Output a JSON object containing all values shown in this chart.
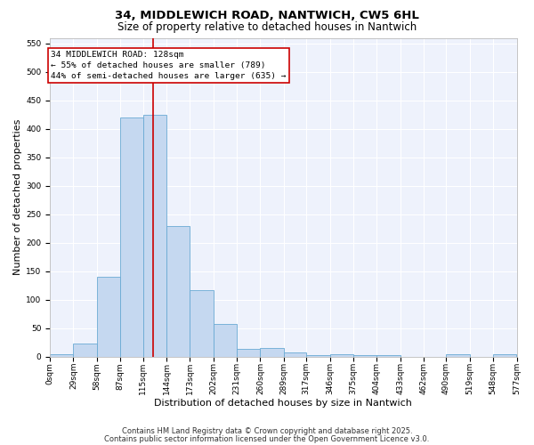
{
  "title": "34, MIDDLEWICH ROAD, NANTWICH, CW5 6HL",
  "subtitle": "Size of property relative to detached houses in Nantwich",
  "xlabel": "Distribution of detached houses by size in Nantwich",
  "ylabel": "Number of detached properties",
  "bin_edges": [
    0,
    29,
    58,
    87,
    115,
    144,
    173,
    202,
    231,
    260,
    289,
    317,
    346,
    375,
    404,
    433,
    462,
    490,
    519,
    548,
    577
  ],
  "bin_labels": [
    "0sqm",
    "29sqm",
    "58sqm",
    "87sqm",
    "115sqm",
    "144sqm",
    "173sqm",
    "202sqm",
    "231sqm",
    "260sqm",
    "289sqm",
    "317sqm",
    "346sqm",
    "375sqm",
    "404sqm",
    "433sqm",
    "462sqm",
    "490sqm",
    "519sqm",
    "548sqm",
    "577sqm"
  ],
  "counts": [
    4,
    23,
    140,
    420,
    425,
    230,
    117,
    58,
    13,
    15,
    7,
    2,
    4,
    2,
    2,
    0,
    0,
    4,
    0,
    4
  ],
  "bar_color": "#c5d8f0",
  "bar_edgecolor": "#6aaad4",
  "property_size": 128,
  "annotation_line1": "34 MIDDLEWICH ROAD: 128sqm",
  "annotation_line2": "← 55% of detached houses are smaller (789)",
  "annotation_line3": "44% of semi-detached houses are larger (635) →",
  "vline_color": "#cc0000",
  "ylim": [
    0,
    560
  ],
  "yticks": [
    0,
    50,
    100,
    150,
    200,
    250,
    300,
    350,
    400,
    450,
    500,
    550
  ],
  "annotation_box_color": "#cc0000",
  "footer1": "Contains HM Land Registry data © Crown copyright and database right 2025.",
  "footer2": "Contains public sector information licensed under the Open Government Licence v3.0.",
  "background_color": "#eef2fc",
  "grid_color": "#ffffff",
  "title_fontsize": 9.5,
  "subtitle_fontsize": 8.5,
  "axis_label_fontsize": 8,
  "tick_fontsize": 6.5,
  "annotation_fontsize": 6.8,
  "footer_fontsize": 6
}
